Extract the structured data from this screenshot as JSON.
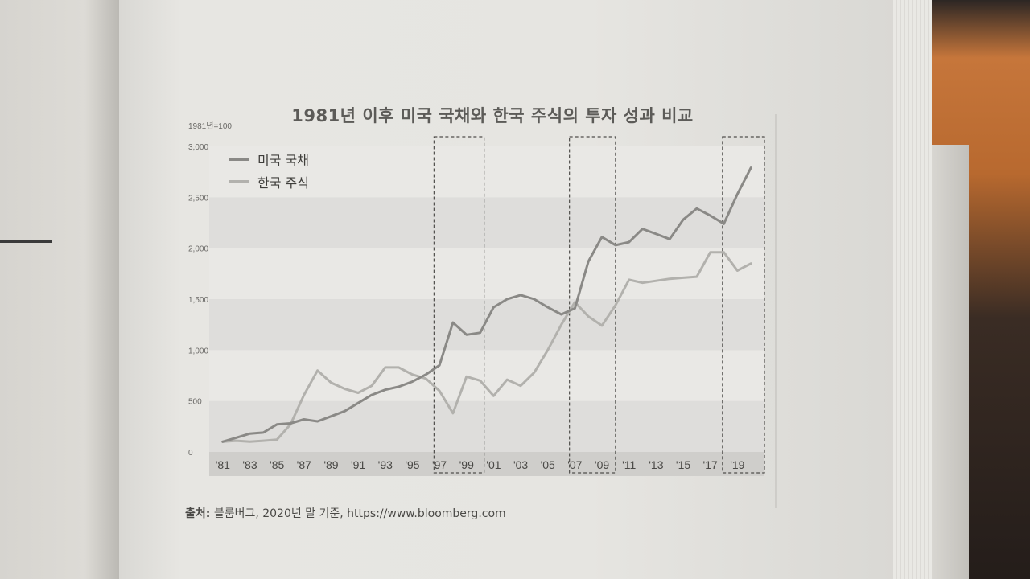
{
  "chart_data": {
    "type": "line",
    "title": "1981년 이후 미국 국채와 한국 주식의 투자 성과 비교",
    "ylabel": "1981년=100",
    "ylim": [
      0,
      3000
    ],
    "yticks": [
      "3,000",
      "2,500",
      "2,000",
      "1,500",
      "1,000",
      "500",
      "0"
    ],
    "ytick_values": [
      3000,
      2500,
      2000,
      1500,
      1000,
      500,
      0
    ],
    "xlim": [
      1980,
      2021
    ],
    "x": [
      1981,
      1982,
      1983,
      1984,
      1985,
      1986,
      1987,
      1988,
      1989,
      1990,
      1991,
      1992,
      1993,
      1994,
      1995,
      1996,
      1997,
      1998,
      1999,
      2000,
      2001,
      2002,
      2003,
      2004,
      2005,
      2006,
      2007,
      2008,
      2009,
      2010,
      2011,
      2012,
      2013,
      2014,
      2015,
      2016,
      2017,
      2018,
      2019,
      2020
    ],
    "xtick_values": [
      1981,
      1983,
      1985,
      1987,
      1989,
      1991,
      1993,
      1995,
      1997,
      1999,
      2001,
      2003,
      2005,
      2007,
      2009,
      2011,
      2013,
      2015,
      2017,
      2019
    ],
    "xticks": [
      "'81",
      "'83",
      "'85",
      "'87",
      "'89",
      "'91",
      "'93",
      "'95",
      "'97",
      "'99",
      "'01",
      "'03",
      "'05",
      "'07",
      "'09",
      "'11",
      "'13",
      "'15",
      "'17",
      "'19"
    ],
    "series": [
      {
        "name": "미국 국채",
        "color": "#8a8986",
        "values": [
          100,
          140,
          180,
          190,
          270,
          280,
          320,
          300,
          350,
          400,
          480,
          560,
          610,
          640,
          690,
          760,
          850,
          1270,
          1150,
          1170,
          1420,
          1500,
          1540,
          1500,
          1420,
          1350,
          1410,
          1870,
          2110,
          2030,
          2060,
          2190,
          2140,
          2090,
          2280,
          2390,
          2320,
          2240,
          2530,
          2790
        ]
      },
      {
        "name": "한국 주식",
        "color": "#b2b1ad",
        "values": [
          100,
          110,
          100,
          110,
          120,
          270,
          560,
          800,
          680,
          620,
          580,
          650,
          830,
          830,
          760,
          720,
          600,
          380,
          740,
          700,
          550,
          710,
          650,
          780,
          1000,
          1250,
          1470,
          1330,
          1240,
          1440,
          1690,
          1660,
          1680,
          1700,
          1710,
          1720,
          1960,
          1960,
          1780,
          1850
        ]
      }
    ],
    "highlight_ranges": [
      [
        1996.6,
        2000.3
      ],
      [
        2006.6,
        2010.0
      ],
      [
        2017.9,
        2021.0
      ]
    ],
    "legend": "top-left",
    "source": {
      "label": "출처:",
      "text": "블룸버그, 2020년 말 기준, https://www.bloomberg.com"
    }
  }
}
